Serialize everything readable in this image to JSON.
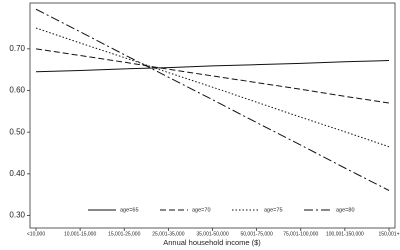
{
  "chart_data": {
    "type": "line",
    "x_label": "Annual household income ($)",
    "categories": [
      "<10,000",
      "10,001-15,000",
      "15,001-25,000",
      "25,001-35,000",
      "35,001-50,000",
      "50,001-75,000",
      "75,001-100,000",
      "100,001-150,000",
      "150,001+"
    ],
    "series": [
      {
        "name": "age=65",
        "color": "#111111",
        "dash": "solid",
        "values": [
          0.645,
          0.648,
          0.652,
          0.655,
          0.659,
          0.662,
          0.665,
          0.669,
          0.672
        ]
      },
      {
        "name": "age=70",
        "color": "#111111",
        "dash": "dashed",
        "values": [
          0.7,
          0.684,
          0.668,
          0.651,
          0.635,
          0.619,
          0.603,
          0.586,
          0.57
        ]
      },
      {
        "name": "age=75",
        "color": "#111111",
        "dash": "dotted",
        "values": [
          0.75,
          0.714,
          0.679,
          0.643,
          0.608,
          0.572,
          0.536,
          0.501,
          0.465
        ]
      },
      {
        "name": "age=80",
        "color": "#111111",
        "dash": "longdash",
        "values": [
          0.795,
          0.741,
          0.686,
          0.632,
          0.578,
          0.523,
          0.469,
          0.414,
          0.36
        ]
      }
    ],
    "ylim": [
      0.27,
      0.81
    ],
    "yticks": [
      {
        "value": 0.3,
        "label": "0.30"
      },
      {
        "value": 0.4,
        "label": "0.40"
      },
      {
        "value": 0.5,
        "label": "0.50"
      },
      {
        "value": 0.6,
        "label": "0.60"
      },
      {
        "value": 0.7,
        "label": "0.70"
      }
    ],
    "grid": false,
    "legend": "bottom"
  }
}
